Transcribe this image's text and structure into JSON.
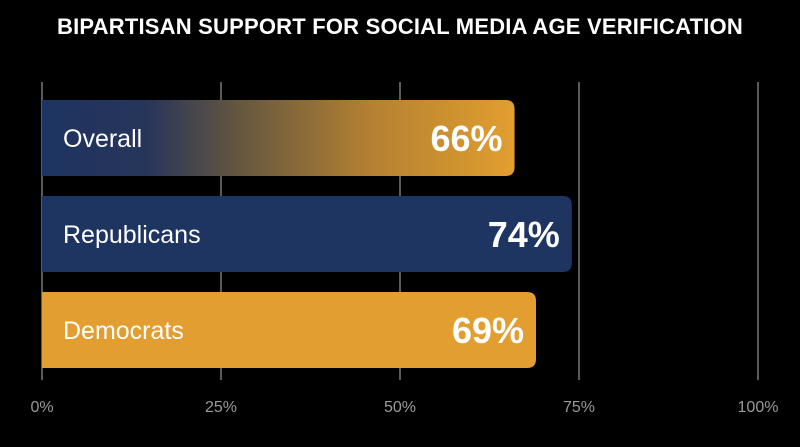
{
  "chart_data": {
    "type": "bar",
    "orientation": "horizontal",
    "title": "BIPARTISAN SUPPORT FOR SOCIAL MEDIA AGE VERIFICATION",
    "xlabel": "",
    "ylabel": "",
    "xlim": [
      0,
      100
    ],
    "x_ticks": [
      0,
      25,
      50,
      75,
      100
    ],
    "x_tick_labels": [
      "0%",
      "25%",
      "50%",
      "75%",
      "100%"
    ],
    "grid": "vertical",
    "categories": [
      "Overall",
      "Republicans",
      "Democrats"
    ],
    "values": [
      66,
      74,
      69
    ],
    "value_labels": [
      "66%",
      "74%",
      "69%"
    ],
    "bar_styles": [
      "gradient-navy-to-gold",
      "solid-navy",
      "solid-gold"
    ]
  },
  "colors": {
    "background": "#000000",
    "navy": "#1e3461",
    "gold": "#e29e30",
    "gridline": "#8a8a8a",
    "tick_label": "#9a9a9a",
    "text": "#ffffff"
  }
}
